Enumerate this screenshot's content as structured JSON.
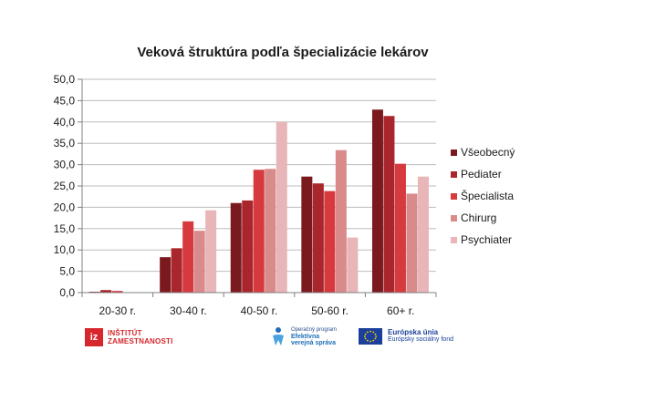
{
  "chart_data": {
    "type": "bar",
    "title": "Veková štruktúra podľa špecializácie lekárov",
    "xlabel": "",
    "ylabel": "",
    "ylim": [
      0,
      50
    ],
    "yticks": [
      "0,0",
      "5,0",
      "10,0",
      "15,0",
      "20,0",
      "25,0",
      "30,0",
      "35,0",
      "40,0",
      "45,0",
      "50,0"
    ],
    "ytick_values": [
      0,
      5,
      10,
      15,
      20,
      25,
      30,
      35,
      40,
      45,
      50
    ],
    "grid": true,
    "legend_position": "right",
    "categories": [
      "20-30 r.",
      "30-40 r.",
      "40-50 r.",
      "50-60 r.",
      "60+ r."
    ],
    "series": [
      {
        "name": "Všeobecný",
        "color": "#7b1a1e",
        "values": [
          0.2,
          8.3,
          21.0,
          27.2,
          42.9
        ]
      },
      {
        "name": "Pediater",
        "color": "#a8262c",
        "values": [
          0.6,
          10.4,
          21.6,
          25.6,
          41.4
        ]
      },
      {
        "name": "Špecialista",
        "color": "#d63a3f",
        "values": [
          0.4,
          16.7,
          28.8,
          23.8,
          30.2
        ]
      },
      {
        "name": "Chirurg",
        "color": "#d98a8a",
        "values": [
          0.0,
          14.5,
          29.0,
          33.4,
          23.2
        ]
      },
      {
        "name": "Psychiater",
        "color": "#e8b5b8",
        "values": [
          0.1,
          19.3,
          40.0,
          12.9,
          27.2
        ]
      }
    ]
  },
  "footer": {
    "iz_badge": "iz",
    "iz_line1": "INŠTITÚT",
    "iz_line2": "ZAMESTNANOSTI",
    "op_line1": "Operačný program",
    "op_line2": "Efektívna",
    "op_line3": "verejná správa",
    "eu_line1": "Európska únia",
    "eu_line2": "Európsky sociálny fond"
  }
}
